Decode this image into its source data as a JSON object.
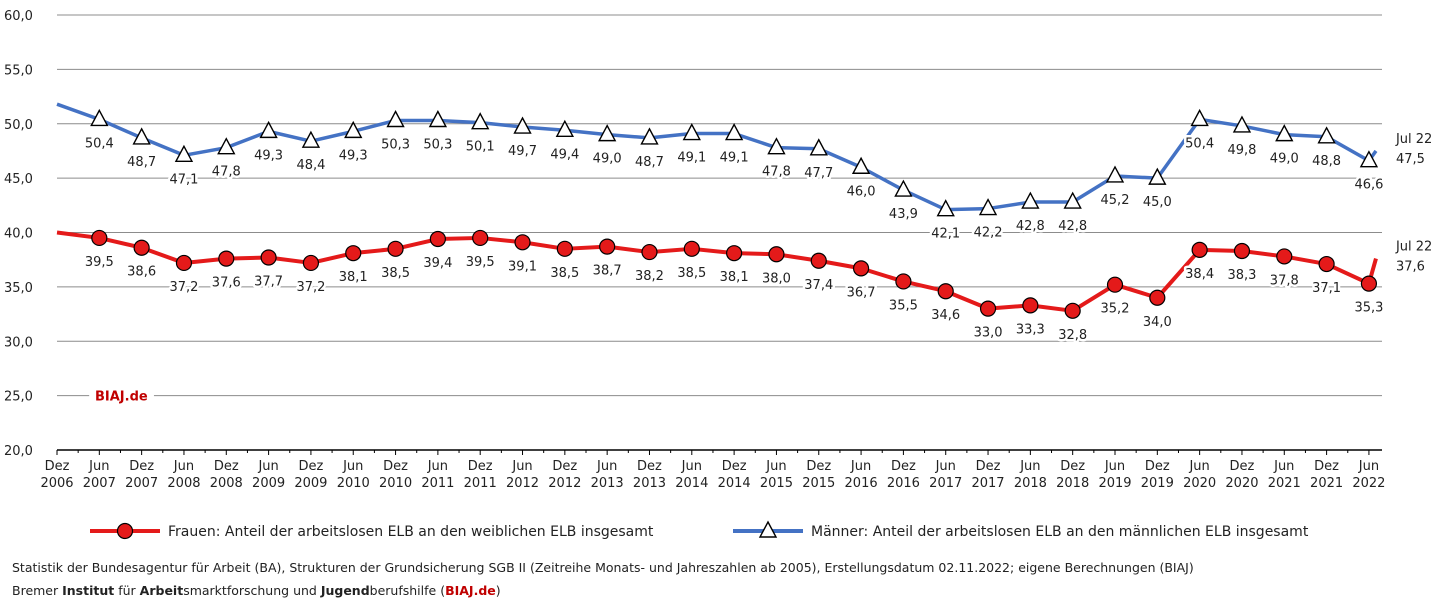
{
  "chart_data": {
    "type": "line",
    "categories": [
      [
        "Dez",
        "2006"
      ],
      [
        "Jun",
        "2007"
      ],
      [
        "Dez",
        "2007"
      ],
      [
        "Jun",
        "2008"
      ],
      [
        "Dez",
        "2008"
      ],
      [
        "Jun",
        "2009"
      ],
      [
        "Dez",
        "2009"
      ],
      [
        "Jun",
        "2010"
      ],
      [
        "Dez",
        "2010"
      ],
      [
        "Jun",
        "2011"
      ],
      [
        "Dez",
        "2011"
      ],
      [
        "Jun",
        "2012"
      ],
      [
        "Dez",
        "2012"
      ],
      [
        "Jun",
        "2013"
      ],
      [
        "Dez",
        "2013"
      ],
      [
        "Jun",
        "2014"
      ],
      [
        "Dez",
        "2014"
      ],
      [
        "Jun",
        "2015"
      ],
      [
        "Dez",
        "2015"
      ],
      [
        "Jun",
        "2016"
      ],
      [
        "Dez",
        "2016"
      ],
      [
        "Jun",
        "2017"
      ],
      [
        "Dez",
        "2017"
      ],
      [
        "Jun",
        "2018"
      ],
      [
        "Dez",
        "2018"
      ],
      [
        "Jun",
        "2019"
      ],
      [
        "Dez",
        "2019"
      ],
      [
        "Jun",
        "2020"
      ],
      [
        "Dez",
        "2020"
      ],
      [
        "Jun",
        "2021"
      ],
      [
        "Dez",
        "2021"
      ],
      [
        "Jun",
        "2022"
      ],
      null
    ],
    "series": [
      {
        "name": "Frauen: Anteil der arbeitslosen ELB an den weiblichen ELB insgesamt",
        "color": "#e41a1a",
        "marker": "circle",
        "end_label": "Jul 22",
        "values": [
          40.0,
          39.5,
          38.6,
          37.2,
          37.6,
          37.7,
          37.2,
          38.1,
          38.5,
          39.4,
          39.5,
          39.1,
          38.5,
          38.7,
          38.2,
          38.5,
          38.1,
          38.0,
          37.4,
          36.7,
          35.5,
          34.6,
          33.0,
          33.3,
          32.8,
          35.2,
          34.0,
          38.4,
          38.3,
          37.8,
          37.1,
          35.3,
          37.6
        ],
        "value_labels": [
          null,
          "39,5",
          "38,6",
          "37,2",
          "37,6",
          "37,7",
          "37,2",
          "38,1",
          "38,5",
          "39,4",
          "39,5",
          "39,1",
          "38,5",
          "38,7",
          "38,2",
          "38,5",
          "38,1",
          "38,0",
          "37,4",
          "36,7",
          "35,5",
          "34,6",
          "33,0",
          "33,3",
          "32,8",
          "35,2",
          "34,0",
          "38,4",
          "38,3",
          "37,8",
          "37,1",
          "35,3",
          "37,6"
        ]
      },
      {
        "name": "Männer: Anteil der arbeitslosen ELB an den männlichen ELB insgesamt",
        "color": "#4472c4",
        "marker": "triangle",
        "end_label": "Jul 22",
        "values": [
          51.8,
          50.4,
          48.7,
          47.1,
          47.8,
          49.3,
          48.4,
          49.3,
          50.3,
          50.3,
          50.1,
          49.7,
          49.4,
          49.0,
          48.7,
          49.1,
          49.1,
          47.8,
          47.7,
          46.0,
          43.9,
          42.1,
          42.2,
          42.8,
          42.8,
          45.2,
          45.0,
          50.4,
          49.8,
          49.0,
          48.8,
          46.6,
          47.5
        ],
        "value_labels": [
          null,
          "50,4",
          "48,7",
          "47,1",
          "47,8",
          "49,3",
          "48,4",
          "49,3",
          "50,3",
          "50,3",
          "50,1",
          "49,7",
          "49,4",
          "49,0",
          "48,7",
          "49,1",
          "49,1",
          "47,8",
          "47,7",
          "46,0",
          "43,9",
          "42,1",
          "42,2",
          "42,8",
          "42,8",
          "45,2",
          "45,0",
          "50,4",
          "49,8",
          "49,0",
          "48,8",
          "46,6",
          "47,5"
        ]
      }
    ],
    "ylim": [
      20,
      60
    ],
    "yticks": [
      {
        "value": 20,
        "label": "20,0"
      },
      {
        "value": 25,
        "label": "25,0"
      },
      {
        "value": 30,
        "label": "30,0"
      },
      {
        "value": 35,
        "label": "35,0"
      },
      {
        "value": 40,
        "label": "40,0"
      },
      {
        "value": 45,
        "label": "45,0"
      },
      {
        "value": 50,
        "label": "50,0"
      },
      {
        "value": 55,
        "label": "55,0"
      },
      {
        "value": 60,
        "label": "60,0"
      }
    ],
    "grid": true,
    "annotation": "BIAJ.de",
    "source": [
      [
        {
          "text": "Statistik der Bundesagentur für Arbeit (BA), Strukturen der Grundsicherung SGB II (Zeitreihe Monats- und Jahreszahlen ab 2005), Erstellungsdatum 02.11.2022; eigene Berechnungen (BIAJ)",
          "bold": false
        }
      ],
      [
        {
          "text": "Bremer ",
          "bold": false
        },
        {
          "text": "Institut",
          "bold": true
        },
        {
          "text": " für ",
          "bold": false
        },
        {
          "text": "Arbeit",
          "bold": true
        },
        {
          "text": "smarktforschung und ",
          "bold": false
        },
        {
          "text": "Jugend",
          "bold": true
        },
        {
          "text": "berufshilfe (",
          "bold": false
        },
        {
          "text": "BIAJ.de",
          "bold": true,
          "color": "#c00000"
        },
        {
          "text": ")",
          "bold": false
        }
      ]
    ]
  }
}
